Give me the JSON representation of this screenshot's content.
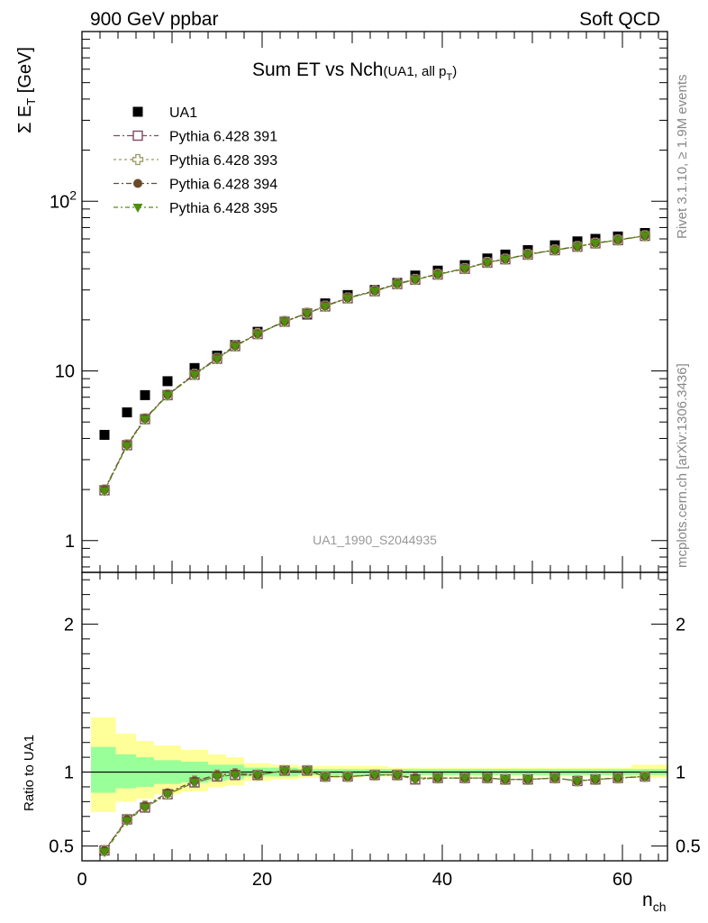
{
  "header": {
    "left_label": "900 GeV ppbar",
    "right_label": "Soft QCD"
  },
  "side_text": {
    "rivet": "Rivet 3.1.10, ≥ 1.9M events",
    "mcplots": "mcplots.cern.ch [arXiv:1306.3436]"
  },
  "chart_data": [
    {
      "type": "scatter",
      "title_main": "Sum ET vs Nch",
      "title_sub": "(UA1, all p",
      "title_sub_idx": "T",
      "title_sub_end": ")",
      "ylabel_sym": "Σ E",
      "ylabel_idx": "T",
      "ylabel_unit": " [GeV]",
      "yscale": "log",
      "ylim": [
        0.65,
        1000
      ],
      "xlim": [
        0,
        65
      ],
      "y_ticks": [
        {
          "v": 1,
          "label": "1"
        },
        {
          "v": 10,
          "label": "10"
        },
        {
          "v": 100,
          "label": "10",
          "sup": "2"
        }
      ],
      "watermark": "UA1_1990_S2044935",
      "legend_position": "top-left",
      "x": [
        2.5,
        5,
        7,
        9.5,
        12.5,
        15,
        17,
        19.5,
        22.5,
        25,
        27,
        29.5,
        32.5,
        35,
        37,
        39.5,
        42.5,
        45,
        47,
        49.5,
        52.5,
        55,
        57,
        59.5,
        62.5
      ],
      "series": [
        {
          "name": "UA1",
          "color": "#000000",
          "marker": "square",
          "values": [
            4.2,
            5.7,
            7.2,
            8.7,
            10.4,
            12.3,
            14.2,
            17.0,
            19.5,
            21.5,
            25.0,
            28.0,
            30.0,
            33.0,
            36.5,
            39.0,
            42.0,
            46.0,
            48.5,
            51.5,
            55.0,
            58.0,
            60.0,
            62.0,
            65.0
          ]
        },
        {
          "name": "Pythia 6.428 391",
          "color": "#7b4a5f",
          "marker": "open-square",
          "values": [
            1.98,
            3.65,
            5.2,
            7.2,
            9.5,
            11.8,
            14.0,
            16.5,
            19.5,
            21.8,
            24.0,
            26.8,
            29.5,
            32.5,
            34.5,
            37.0,
            40.0,
            43.5,
            45.5,
            48.5,
            51.5,
            54.0,
            56.5,
            59.0,
            62.5
          ]
        },
        {
          "name": "Pythia 6.428 393",
          "color": "#9a9a66",
          "marker": "open-cross",
          "values": [
            1.99,
            3.67,
            5.22,
            7.22,
            9.55,
            11.85,
            14.05,
            16.6,
            19.6,
            21.9,
            24.1,
            26.9,
            29.6,
            32.6,
            34.6,
            37.1,
            40.1,
            43.6,
            45.6,
            48.6,
            51.6,
            54.1,
            56.6,
            59.1,
            62.6
          ]
        },
        {
          "name": "Pythia 6.428 394",
          "color": "#6b4a2a",
          "marker": "circle",
          "values": [
            2.0,
            3.68,
            5.25,
            7.25,
            9.6,
            11.9,
            14.1,
            16.6,
            19.6,
            21.9,
            24.2,
            27.0,
            29.7,
            32.7,
            34.7,
            37.2,
            40.2,
            43.7,
            45.7,
            48.7,
            51.7,
            54.2,
            56.7,
            59.2,
            62.7
          ]
        },
        {
          "name": "Pythia 6.428 395",
          "color": "#4f8f10",
          "marker": "triangle-down",
          "values": [
            1.96,
            3.62,
            5.18,
            7.18,
            9.48,
            11.75,
            13.95,
            16.5,
            19.5,
            21.8,
            24.0,
            26.8,
            29.5,
            32.5,
            34.5,
            37.0,
            40.0,
            43.5,
            45.5,
            48.5,
            51.5,
            54.0,
            56.5,
            59.0,
            62.5
          ]
        }
      ]
    },
    {
      "type": "scatter",
      "ylabel": "Ratio to UA1",
      "xlabel_main": "n",
      "xlabel_idx": "ch",
      "ylim": [
        0.4,
        2.35
      ],
      "xlim": [
        0,
        65
      ],
      "x_ticks": [
        0,
        20,
        40,
        60
      ],
      "y_ticks": [
        {
          "v": 0.5,
          "label": "0.5"
        },
        {
          "v": 1,
          "label": "1"
        },
        {
          "v": 2,
          "label": "2"
        }
      ],
      "reference": 1,
      "band_edges": [
        1,
        3.75,
        6,
        8,
        11,
        14,
        16,
        18,
        21,
        24,
        26,
        28,
        31,
        34,
        36,
        38,
        41,
        44,
        46,
        48,
        51,
        54,
        56,
        58,
        61,
        65
      ],
      "yellow_band": {
        "color": "#ffff99",
        "lo": [
          0.73,
          0.8,
          0.82,
          0.85,
          0.87,
          0.9,
          0.91,
          0.94,
          0.95,
          0.96,
          0.96,
          0.96,
          0.97,
          0.97,
          0.97,
          0.97,
          0.97,
          0.97,
          0.97,
          0.97,
          0.97,
          0.97,
          0.97,
          0.97,
          0.96
        ],
        "hi": [
          1.37,
          1.26,
          1.21,
          1.18,
          1.15,
          1.12,
          1.1,
          1.06,
          1.05,
          1.04,
          1.04,
          1.04,
          1.04,
          1.03,
          1.03,
          1.03,
          1.03,
          1.03,
          1.03,
          1.03,
          1.03,
          1.03,
          1.03,
          1.03,
          1.05
        ]
      },
      "green_band": {
        "color": "#99ff99",
        "lo": [
          0.86,
          0.89,
          0.9,
          0.92,
          0.93,
          0.94,
          0.95,
          0.97,
          0.97,
          0.98,
          0.98,
          0.98,
          0.98,
          0.98,
          0.98,
          0.98,
          0.98,
          0.98,
          0.98,
          0.98,
          0.98,
          0.98,
          0.98,
          0.98,
          0.98
        ],
        "hi": [
          1.17,
          1.12,
          1.1,
          1.08,
          1.07,
          1.05,
          1.05,
          1.03,
          1.03,
          1.02,
          1.02,
          1.02,
          1.02,
          1.02,
          1.02,
          1.02,
          1.02,
          1.02,
          1.02,
          1.02,
          1.02,
          1.02,
          1.02,
          1.02,
          1.02
        ]
      },
      "x": [
        2.5,
        5,
        7,
        9.5,
        12.5,
        15,
        17,
        19.5,
        22.5,
        25,
        27,
        29.5,
        32.5,
        35,
        37,
        39.5,
        42.5,
        45,
        47,
        49.5,
        52.5,
        55,
        57,
        59.5,
        62.5
      ],
      "series": [
        {
          "name": "Pythia 6.428 391",
          "color": "#7b4a5f",
          "marker": "open-square",
          "values": [
            0.47,
            0.68,
            0.76,
            0.85,
            0.93,
            0.97,
            0.98,
            0.98,
            1.01,
            1.01,
            0.97,
            0.97,
            0.98,
            0.98,
            0.95,
            0.96,
            0.96,
            0.96,
            0.95,
            0.95,
            0.96,
            0.94,
            0.95,
            0.96,
            0.97
          ]
        },
        {
          "name": "Pythia 6.428 393",
          "color": "#9a9a66",
          "marker": "open-cross",
          "values": [
            0.47,
            0.68,
            0.77,
            0.85,
            0.94,
            0.98,
            0.99,
            0.98,
            1.01,
            1.01,
            0.97,
            0.97,
            0.98,
            0.98,
            0.96,
            0.96,
            0.96,
            0.96,
            0.95,
            0.95,
            0.96,
            0.94,
            0.95,
            0.96,
            0.97
          ]
        },
        {
          "name": "Pythia 6.428 394",
          "color": "#6b4a2a",
          "marker": "circle",
          "values": [
            0.47,
            0.68,
            0.77,
            0.86,
            0.94,
            0.98,
            0.99,
            0.98,
            1.01,
            1.01,
            0.97,
            0.97,
            0.98,
            0.98,
            0.96,
            0.96,
            0.96,
            0.96,
            0.95,
            0.95,
            0.96,
            0.94,
            0.95,
            0.96,
            0.97
          ]
        },
        {
          "name": "Pythia 6.428 395",
          "color": "#4f8f10",
          "marker": "triangle-down",
          "values": [
            0.46,
            0.67,
            0.76,
            0.85,
            0.93,
            0.97,
            0.98,
            0.98,
            1.01,
            1.01,
            0.97,
            0.97,
            0.98,
            0.98,
            0.95,
            0.96,
            0.96,
            0.96,
            0.95,
            0.95,
            0.96,
            0.94,
            0.95,
            0.96,
            0.97
          ]
        }
      ]
    }
  ]
}
